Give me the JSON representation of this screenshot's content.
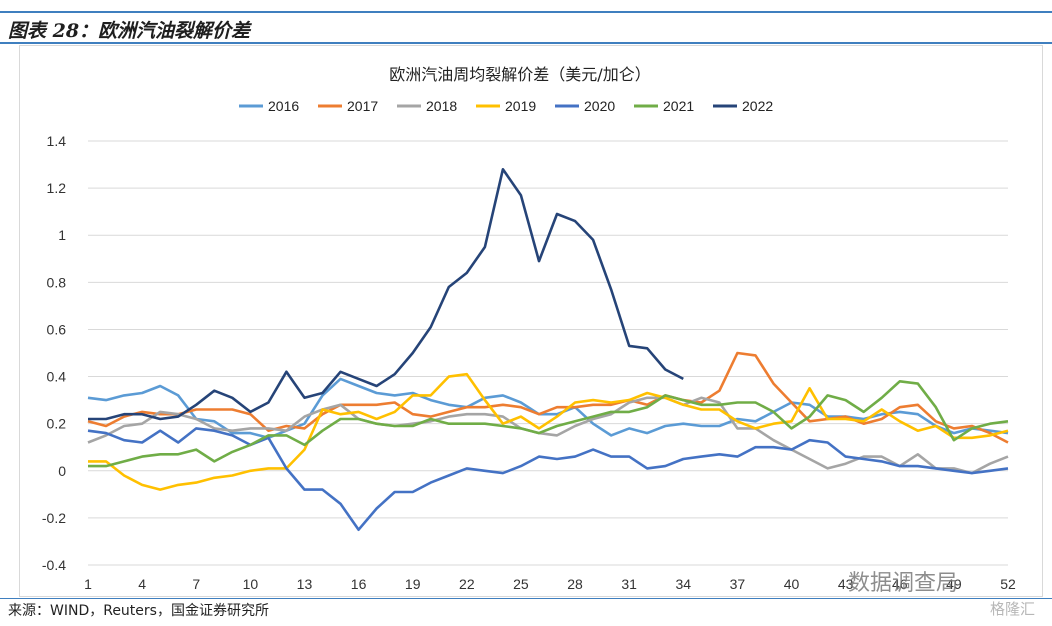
{
  "header": {
    "title": "图表 28：欧洲汽油裂解价差"
  },
  "footer": {
    "source": "来源：WIND，Reuters，国金证券研究所"
  },
  "watermark": {
    "primary": "数据调查局",
    "secondary": "格隆汇"
  },
  "chart_data": {
    "type": "line",
    "title": "欧洲汽油周均裂解价差（美元/加仑）",
    "xlabel": "",
    "ylabel": "",
    "xlim": [
      1,
      52
    ],
    "ylim": [
      -0.4,
      1.4
    ],
    "y_ticks": [
      -0.4,
      -0.2,
      0,
      0.2,
      0.4,
      0.6,
      0.8,
      1,
      1.2,
      1.4
    ],
    "y_tick_labels": [
      "-0.4",
      "-0.2",
      "0",
      "0.2",
      "0.4",
      "0.6",
      "0.8",
      "1",
      "1.2",
      "1.4"
    ],
    "x_ticks": [
      1,
      4,
      7,
      10,
      13,
      16,
      19,
      22,
      25,
      28,
      31,
      34,
      37,
      40,
      43,
      46,
      49,
      52
    ],
    "x_tick_labels": [
      "1",
      "4",
      "7",
      "10",
      "13",
      "16",
      "19",
      "22",
      "25",
      "28",
      "31",
      "34",
      "37",
      "40",
      "43",
      "46",
      "49",
      "52"
    ],
    "grid": "horizontal",
    "legend_position": "top",
    "series": [
      {
        "name": "2016",
        "color": "#5b9bd5",
        "values": [
          0.31,
          0.3,
          0.32,
          0.33,
          0.36,
          0.32,
          0.22,
          0.21,
          0.16,
          0.16,
          0.14,
          0.17,
          0.2,
          0.32,
          0.39,
          0.36,
          0.33,
          0.32,
          0.33,
          0.3,
          0.28,
          0.27,
          0.31,
          0.32,
          0.29,
          0.24,
          0.24,
          0.27,
          0.2,
          0.15,
          0.18,
          0.16,
          0.19,
          0.2,
          0.19,
          0.19,
          0.22,
          0.21,
          0.25,
          0.29,
          0.28,
          0.23,
          0.23,
          0.22,
          0.24,
          0.25,
          0.24,
          0.19,
          0.16,
          0.18,
          0.17,
          0.16
        ]
      },
      {
        "name": "2017",
        "color": "#ed7d31",
        "values": [
          0.21,
          0.19,
          0.23,
          0.25,
          0.24,
          0.24,
          0.26,
          0.26,
          0.26,
          0.24,
          0.17,
          0.19,
          0.18,
          0.24,
          0.28,
          0.28,
          0.28,
          0.29,
          0.24,
          0.23,
          0.25,
          0.27,
          0.27,
          0.28,
          0.27,
          0.24,
          0.27,
          0.27,
          0.28,
          0.28,
          0.3,
          0.28,
          0.32,
          0.3,
          0.29,
          0.34,
          0.5,
          0.49,
          0.37,
          0.29,
          0.21,
          0.22,
          0.23,
          0.2,
          0.22,
          0.27,
          0.28,
          0.21,
          0.18,
          0.19,
          0.16,
          0.12
        ]
      },
      {
        "name": "2018",
        "color": "#a5a5a5",
        "values": [
          0.12,
          0.15,
          0.19,
          0.2,
          0.25,
          0.24,
          0.22,
          0.18,
          0.17,
          0.18,
          0.18,
          0.17,
          0.23,
          0.26,
          0.28,
          0.22,
          0.2,
          0.19,
          0.2,
          0.21,
          0.23,
          0.24,
          0.24,
          0.23,
          0.18,
          0.16,
          0.15,
          0.19,
          0.22,
          0.24,
          0.29,
          0.31,
          0.31,
          0.28,
          0.31,
          0.29,
          0.18,
          0.18,
          0.13,
          0.09,
          0.05,
          0.01,
          0.03,
          0.06,
          0.06,
          0.02,
          0.07,
          0.01,
          0.01,
          -0.01,
          0.03,
          0.06
        ]
      },
      {
        "name": "2019",
        "color": "#ffc000",
        "values": [
          0.04,
          0.04,
          -0.02,
          -0.06,
          -0.08,
          -0.06,
          -0.05,
          -0.03,
          -0.02,
          0.0,
          0.01,
          0.01,
          0.09,
          0.26,
          0.24,
          0.25,
          0.22,
          0.25,
          0.32,
          0.32,
          0.4,
          0.41,
          0.3,
          0.2,
          0.23,
          0.18,
          0.23,
          0.29,
          0.3,
          0.29,
          0.3,
          0.33,
          0.31,
          0.28,
          0.26,
          0.26,
          0.21,
          0.18,
          0.2,
          0.21,
          0.35,
          0.22,
          0.22,
          0.21,
          0.26,
          0.21,
          0.17,
          0.19,
          0.14,
          0.14,
          0.15,
          0.17
        ]
      },
      {
        "name": "2020",
        "color": "#4472c4",
        "values": [
          0.17,
          0.16,
          0.13,
          0.12,
          0.17,
          0.12,
          0.18,
          0.17,
          0.15,
          0.11,
          0.14,
          0.01,
          -0.08,
          -0.08,
          -0.14,
          -0.25,
          -0.16,
          -0.09,
          -0.09,
          -0.05,
          -0.02,
          0.01,
          0.0,
          -0.01,
          0.02,
          0.06,
          0.05,
          0.06,
          0.09,
          0.06,
          0.06,
          0.01,
          0.02,
          0.05,
          0.06,
          0.07,
          0.06,
          0.1,
          0.1,
          0.09,
          0.13,
          0.12,
          0.06,
          0.05,
          0.04,
          0.02,
          0.02,
          0.01,
          0.0,
          -0.01,
          0.0,
          0.01
        ]
      },
      {
        "name": "2021",
        "color": "#70ad47",
        "values": [
          0.02,
          0.02,
          0.04,
          0.06,
          0.07,
          0.07,
          0.09,
          0.04,
          0.08,
          0.11,
          0.15,
          0.15,
          0.11,
          0.17,
          0.22,
          0.22,
          0.2,
          0.19,
          0.19,
          0.22,
          0.2,
          0.2,
          0.2,
          0.19,
          0.18,
          0.16,
          0.19,
          0.21,
          0.23,
          0.25,
          0.25,
          0.27,
          0.32,
          0.3,
          0.28,
          0.28,
          0.29,
          0.29,
          0.25,
          0.18,
          0.23,
          0.32,
          0.3,
          0.25,
          0.31,
          0.38,
          0.37,
          0.27,
          0.13,
          0.18,
          0.2,
          0.21
        ]
      },
      {
        "name": "2022",
        "color": "#264478",
        "values": [
          0.22,
          0.22,
          0.24,
          0.24,
          0.22,
          0.23,
          0.28,
          0.34,
          0.31,
          0.25,
          0.29,
          0.42,
          0.31,
          0.33,
          0.42,
          0.39,
          0.36,
          0.41,
          0.5,
          0.61,
          0.78,
          0.84,
          0.95,
          1.28,
          1.17,
          0.89,
          1.09,
          1.06,
          0.98,
          0.77,
          0.53,
          0.52,
          0.43,
          0.39,
          null,
          null,
          null,
          null,
          null,
          null,
          null,
          null,
          null,
          null,
          null,
          null,
          null,
          null,
          null,
          null,
          null,
          null
        ]
      }
    ]
  }
}
